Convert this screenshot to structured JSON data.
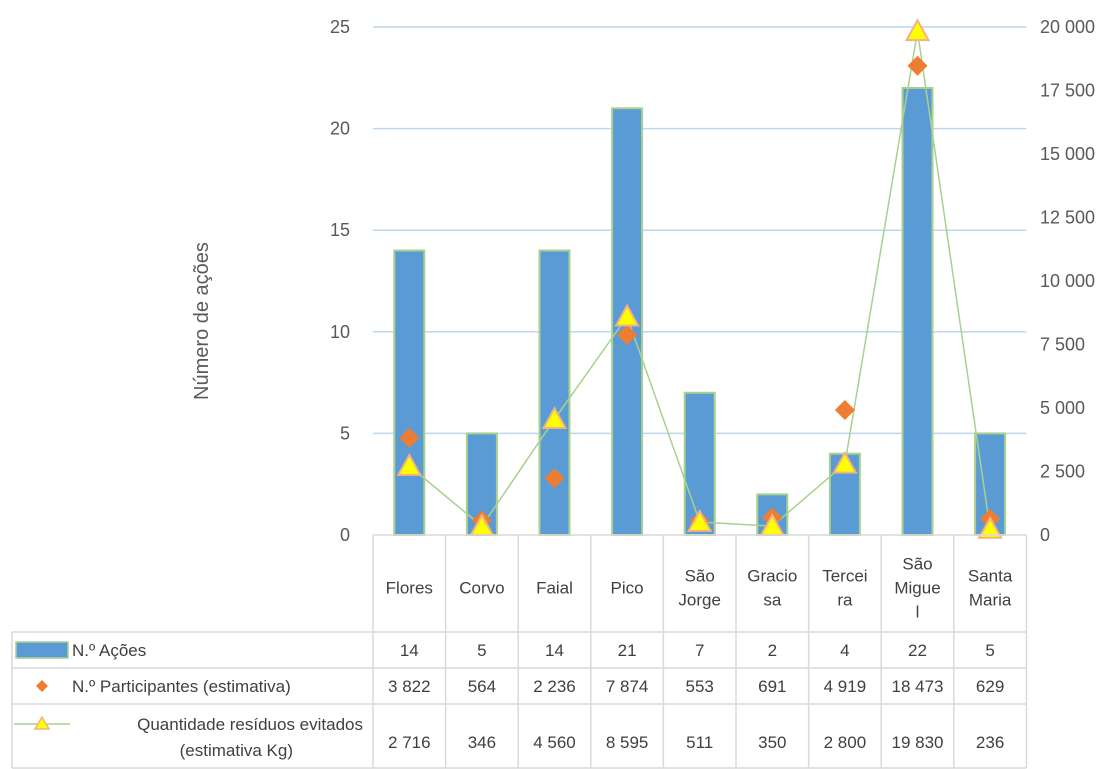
{
  "colors": {
    "bar": "#5b9bd5",
    "bar_stroke": "#a9d18e",
    "participants": "#ed7d31",
    "waste_fill": "#ffff00",
    "waste_stroke": "#f4b183",
    "waste_line": "#a9d18e",
    "grid": "#bdd7ee",
    "table_border": "#d9d9d9"
  },
  "chart_data": {
    "type": "bar",
    "ylabel_left": "Número de ações",
    "ylim_left": [
      0,
      25
    ],
    "yticks_left": [
      "0",
      "5",
      "10",
      "15",
      "20",
      "25"
    ],
    "ylim_right": [
      0,
      20000
    ],
    "yticks_right": [
      "0",
      "2 500",
      "5 000",
      "7 500",
      "10 000",
      "12 500",
      "15 000",
      "17 500",
      "20 000"
    ],
    "categories": [
      [
        "Flores"
      ],
      [
        "Corvo"
      ],
      [
        "Faial"
      ],
      [
        "Pico"
      ],
      [
        "São",
        "Jorge"
      ],
      [
        "Gracio",
        "sa"
      ],
      [
        "Tercei",
        "ra"
      ],
      [
        "São",
        "Migue",
        "l"
      ],
      [
        "Santa",
        "Maria"
      ]
    ],
    "series": [
      {
        "name": "N.º Ações",
        "type": "bar",
        "axis": "left",
        "values": [
          14,
          5,
          14,
          21,
          7,
          2,
          4,
          22,
          5
        ],
        "labels": [
          "14",
          "5",
          "14",
          "21",
          "7",
          "2",
          "4",
          "22",
          "5"
        ]
      },
      {
        "name": "N.º Participantes (estimativa)",
        "type": "scatter",
        "marker": "diamond",
        "axis": "right",
        "values": [
          3822,
          564,
          2236,
          7874,
          553,
          691,
          4919,
          18473,
          629
        ],
        "labels": [
          "3 822",
          "564",
          "2 236",
          "7 874",
          "553",
          "691",
          "4 919",
          "18 473",
          "629"
        ]
      },
      {
        "name": [
          "Quantidade resíduos evitados",
          "(estimativa Kg)"
        ],
        "type": "line",
        "marker": "triangle",
        "axis": "right",
        "values": [
          2716,
          346,
          4560,
          8595,
          511,
          350,
          2800,
          19830,
          236
        ],
        "labels": [
          "2 716",
          "346",
          "4 560",
          "8 595",
          "511",
          "350",
          "2 800",
          "19 830",
          "236"
        ]
      }
    ],
    "legend": "data-table-below",
    "grid": true
  }
}
